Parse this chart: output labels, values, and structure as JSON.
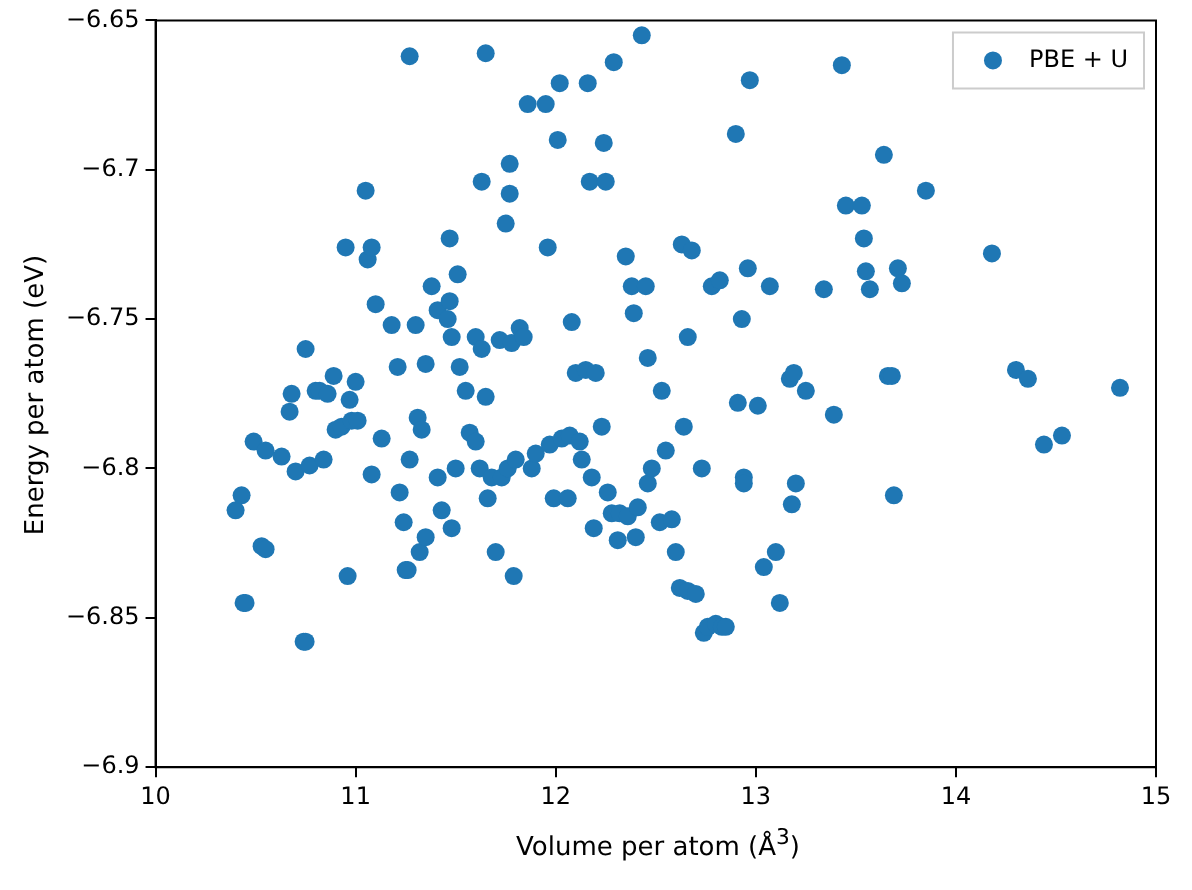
{
  "chart_data": {
    "type": "scatter",
    "xlabel": "Volume per atom (Å$^{3}$)",
    "ylabel": "Energy per atom (eV)",
    "xlim": [
      10,
      15
    ],
    "xticks": [
      10,
      11,
      12,
      13,
      14,
      15
    ],
    "ylim": [
      -6.9,
      -6.65
    ],
    "yticks": [
      -6.9,
      -6.85,
      -6.8,
      -6.75,
      -6.7,
      -6.65
    ],
    "grid": false,
    "legend": "top right",
    "marker": "circle",
    "series": [
      {
        "name": "PBE + U",
        "color": "#1f77b4",
        "x": [
          10.4,
          10.43,
          10.44,
          10.45,
          10.49,
          10.53,
          10.55,
          10.55,
          10.63,
          10.67,
          10.68,
          10.7,
          10.74,
          10.75,
          10.75,
          10.77,
          10.8,
          10.82,
          10.84,
          10.86,
          10.89,
          10.9,
          10.93,
          10.95,
          10.96,
          10.97,
          10.98,
          11.0,
          11.01,
          11.05,
          11.06,
          11.08,
          11.08,
          11.1,
          11.13,
          11.18,
          11.21,
          11.22,
          11.24,
          11.25,
          11.26,
          11.27,
          11.27,
          11.3,
          11.31,
          11.32,
          11.33,
          11.35,
          11.35,
          11.38,
          11.41,
          11.41,
          11.43,
          11.46,
          11.47,
          11.47,
          11.48,
          11.48,
          11.5,
          11.51,
          11.52,
          11.55,
          11.57,
          11.6,
          11.6,
          11.62,
          11.63,
          11.63,
          11.65,
          11.65,
          11.66,
          11.68,
          11.7,
          11.72,
          11.73,
          11.75,
          11.76,
          11.77,
          11.77,
          11.78,
          11.79,
          11.8,
          11.82,
          11.84,
          11.86,
          11.88,
          11.9,
          11.95,
          11.96,
          11.97,
          11.99,
          12.01,
          12.02,
          12.03,
          12.06,
          12.07,
          12.08,
          12.1,
          12.12,
          12.13,
          12.15,
          12.16,
          12.17,
          12.18,
          12.19,
          12.2,
          12.23,
          12.24,
          12.25,
          12.26,
          12.28,
          12.29,
          12.31,
          12.32,
          12.35,
          12.36,
          12.38,
          12.39,
          12.4,
          12.41,
          12.43,
          12.45,
          12.46,
          12.46,
          12.48,
          12.52,
          12.53,
          12.55,
          12.58,
          12.6,
          12.62,
          12.63,
          12.64,
          12.66,
          12.66,
          12.68,
          12.7,
          12.73,
          12.74,
          12.76,
          12.78,
          12.8,
          12.82,
          12.83,
          12.85,
          12.9,
          12.91,
          12.93,
          12.94,
          12.94,
          12.96,
          12.97,
          13.01,
          13.04,
          13.07,
          13.1,
          13.12,
          13.17,
          13.18,
          13.19,
          13.2,
          13.25,
          13.34,
          13.39,
          13.43,
          13.45,
          13.53,
          13.54,
          13.55,
          13.57,
          13.64,
          13.66,
          13.68,
          13.69,
          13.71,
          13.73,
          13.85,
          14.18,
          14.3,
          14.36,
          14.44,
          14.53,
          14.82
        ],
        "values": [
          -6.814,
          -6.809,
          -6.845,
          -6.845,
          -6.791,
          -6.826,
          -6.827,
          -6.794,
          -6.796,
          -6.781,
          -6.775,
          -6.801,
          -6.858,
          -6.858,
          -6.76,
          -6.799,
          -6.774,
          -6.774,
          -6.797,
          -6.775,
          -6.769,
          -6.787,
          -6.786,
          -6.726,
          -6.836,
          -6.777,
          -6.784,
          -6.771,
          -6.784,
          -6.707,
          -6.73,
          -6.726,
          -6.802,
          -6.745,
          -6.79,
          -6.752,
          -6.766,
          -6.808,
          -6.818,
          -6.834,
          -6.834,
          -6.662,
          -6.797,
          -6.752,
          -6.783,
          -6.828,
          -6.787,
          -6.823,
          -6.765,
          -6.739,
          -6.747,
          -6.803,
          -6.814,
          -6.75,
          -6.723,
          -6.744,
          -6.756,
          -6.82,
          -6.8,
          -6.735,
          -6.766,
          -6.774,
          -6.788,
          -6.791,
          -6.756,
          -6.8,
          -6.76,
          -6.704,
          -6.661,
          -6.776,
          -6.81,
          -6.803,
          -6.828,
          -6.757,
          -6.803,
          -6.718,
          -6.8,
          -6.708,
          -6.698,
          -6.758,
          -6.836,
          -6.797,
          -6.753,
          -6.756,
          -6.678,
          -6.8,
          -6.795,
          -6.678,
          -6.726,
          -6.792,
          -6.81,
          -6.69,
          -6.671,
          -6.79,
          -6.81,
          -6.789,
          -6.751,
          -6.768,
          -6.791,
          -6.797,
          -6.767,
          -6.671,
          -6.704,
          -6.803,
          -6.82,
          -6.768,
          -6.786,
          -6.691,
          -6.704,
          -6.808,
          -6.815,
          -6.664,
          -6.824,
          -6.815,
          -6.729,
          -6.816,
          -6.739,
          -6.748,
          -6.823,
          -6.813,
          -6.655,
          -6.739,
          -6.805,
          -6.763,
          -6.8,
          -6.818,
          -6.774,
          -6.794,
          -6.817,
          -6.828,
          -6.84,
          -6.725,
          -6.786,
          -6.756,
          -6.841,
          -6.727,
          -6.842,
          -6.8,
          -6.855,
          -6.853,
          -6.739,
          -6.852,
          -6.737,
          -6.853,
          -6.853,
          -6.688,
          -6.778,
          -6.75,
          -6.803,
          -6.805,
          -6.733,
          -6.67,
          -6.779,
          -6.833,
          -6.739,
          -6.828,
          -6.845,
          -6.77,
          -6.812,
          -6.768,
          -6.805,
          -6.774,
          -6.74,
          -6.782,
          -6.665,
          -6.712,
          -6.712,
          -6.723,
          -6.734,
          -6.74,
          -6.695,
          -6.769,
          -6.769,
          -6.809,
          -6.733,
          -6.738,
          -6.707,
          -6.728,
          -6.767,
          -6.77,
          -6.792,
          -6.789,
          -6.773
        ]
      }
    ]
  }
}
